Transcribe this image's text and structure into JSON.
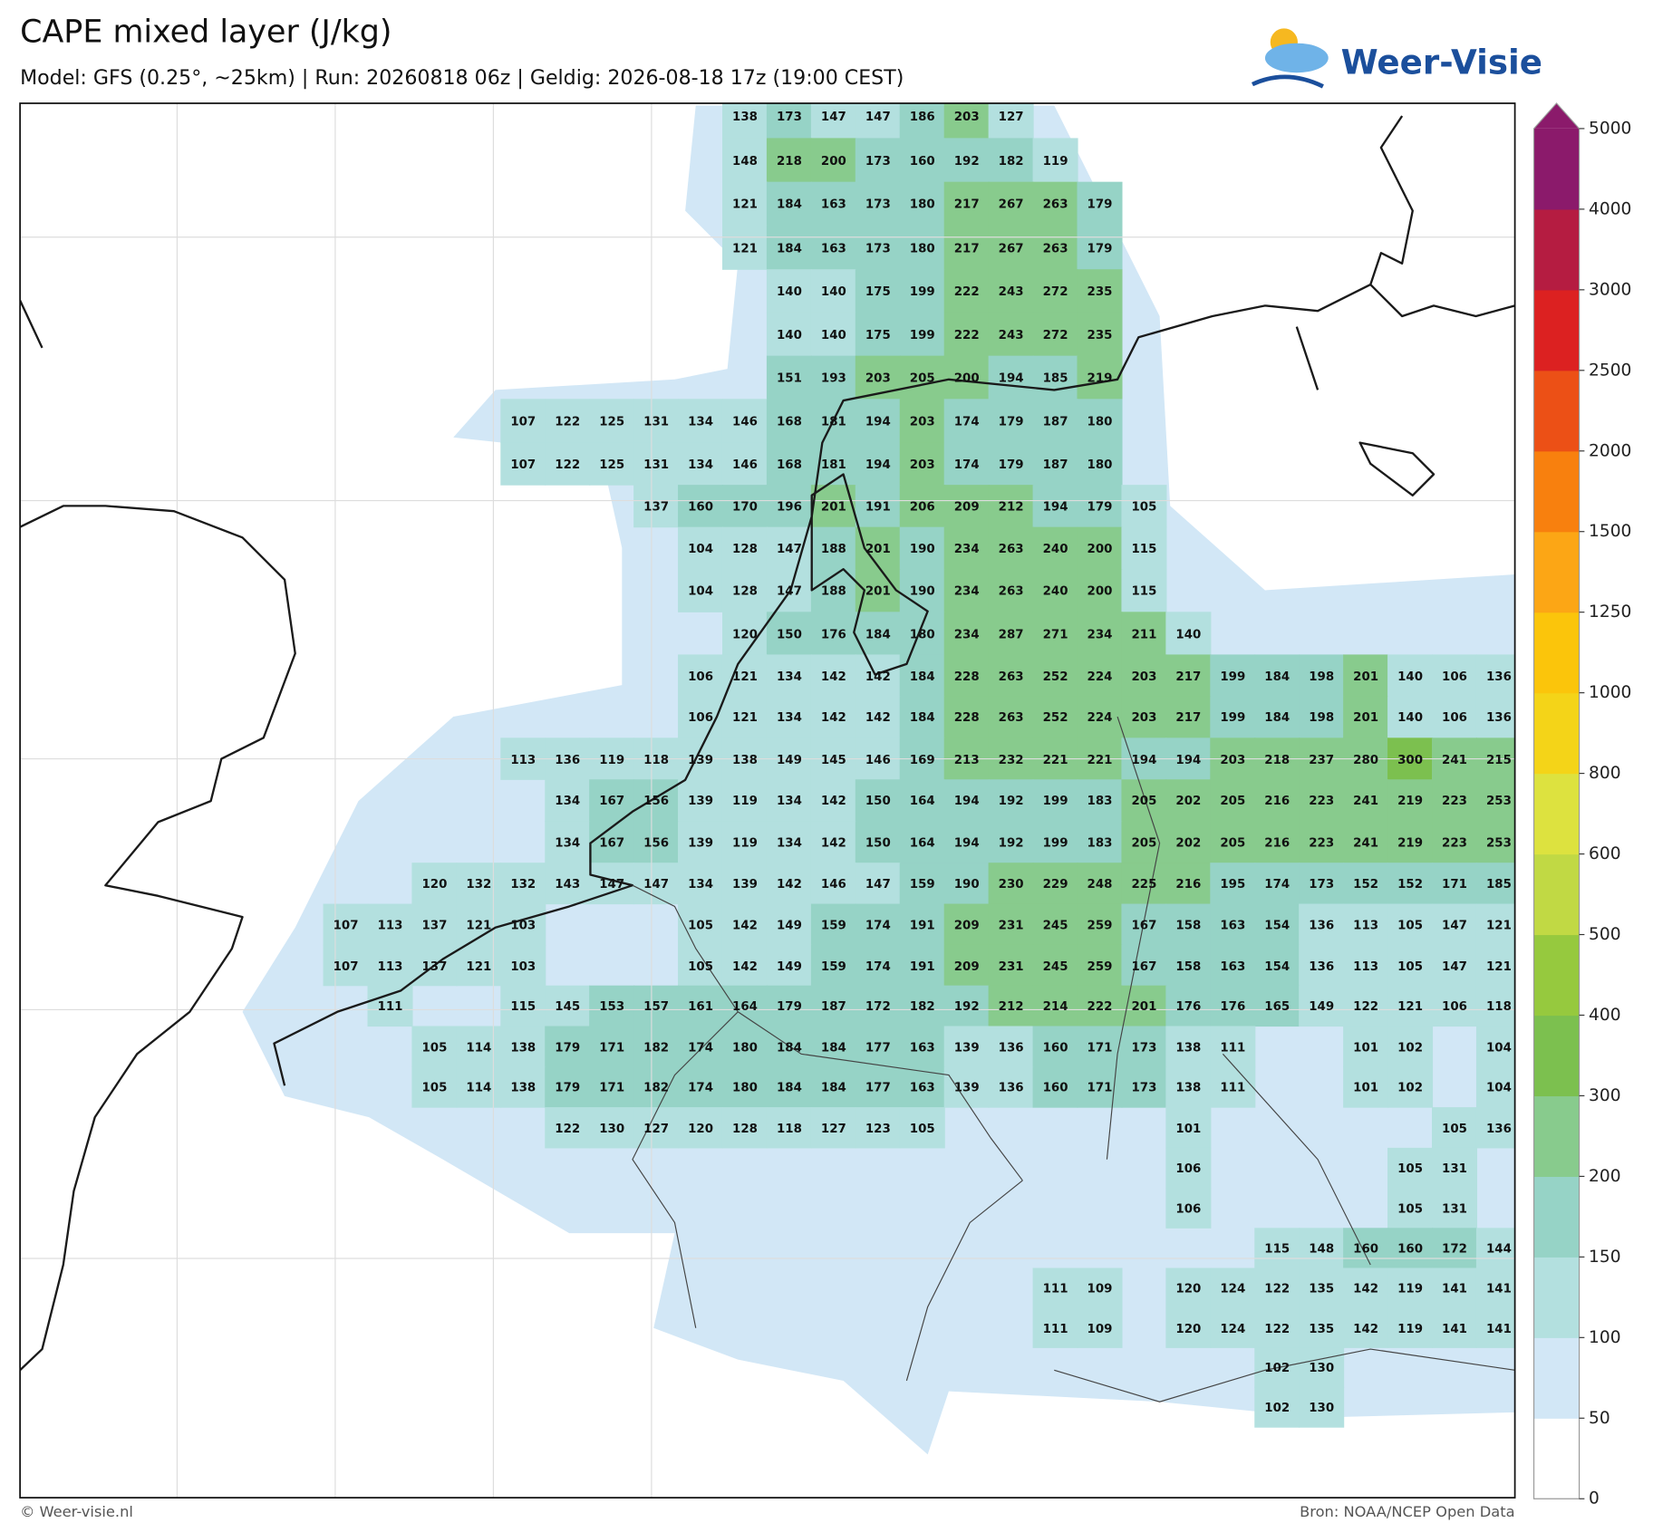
{
  "header": {
    "title": "CAPE mixed layer (J/kg)",
    "subtitle": "Model: GFS (0.25°, ~25km)  |  Run: 20260818 06z  |  Geldig: 2026-08-18 17z (19:00 CEST)"
  },
  "logo": "Weer-Visie",
  "grid_values": [
    [
      null,
      null,
      null,
      null,
      null,
      null,
      null,
      null,
      null,
      138,
      173,
      147,
      147,
      186,
      203,
      127,
      null,
      null,
      null,
      null,
      null,
      null,
      null,
      null,
      null,
      null,
      null
    ],
    [
      null,
      null,
      null,
      null,
      null,
      null,
      null,
      null,
      null,
      148,
      218,
      200,
      173,
      160,
      192,
      182,
      119,
      null,
      null,
      null,
      null,
      null,
      null,
      null,
      null,
      null,
      null
    ],
    [
      null,
      null,
      null,
      null,
      null,
      null,
      null,
      null,
      null,
      121,
      184,
      163,
      173,
      180,
      217,
      267,
      263,
      179,
      null,
      null,
      null,
      null,
      null,
      null,
      null,
      null,
      null
    ],
    [
      null,
      null,
      null,
      null,
      null,
      null,
      null,
      null,
      null,
      121,
      184,
      163,
      173,
      180,
      217,
      267,
      263,
      179,
      null,
      null,
      null,
      null,
      null,
      null,
      null,
      null,
      null
    ],
    [
      null,
      null,
      null,
      null,
      null,
      null,
      null,
      null,
      null,
      null,
      140,
      140,
      175,
      199,
      222,
      243,
      272,
      235,
      null,
      null,
      null,
      null,
      null,
      null,
      null,
      null,
      null
    ],
    [
      null,
      null,
      null,
      null,
      null,
      null,
      null,
      null,
      null,
      null,
      140,
      140,
      175,
      199,
      222,
      243,
      272,
      235,
      null,
      null,
      null,
      null,
      null,
      null,
      null,
      null,
      null
    ],
    [
      null,
      null,
      null,
      null,
      null,
      null,
      null,
      null,
      null,
      null,
      151,
      193,
      203,
      205,
      200,
      194,
      185,
      219,
      null,
      null,
      null,
      null,
      null,
      null,
      null,
      null,
      null
    ],
    [
      null,
      null,
      null,
      null,
      107,
      122,
      125,
      131,
      134,
      146,
      168,
      181,
      194,
      203,
      174,
      179,
      187,
      180,
      null,
      null,
      null,
      null,
      null,
      null,
      null,
      null,
      null
    ],
    [
      null,
      null,
      null,
      null,
      107,
      122,
      125,
      131,
      134,
      146,
      168,
      181,
      194,
      203,
      174,
      179,
      187,
      180,
      null,
      null,
      null,
      null,
      null,
      null,
      null,
      null,
      null
    ],
    [
      null,
      null,
      null,
      null,
      null,
      null,
      null,
      137,
      160,
      170,
      196,
      201,
      191,
      206,
      209,
      212,
      194,
      179,
      105,
      null,
      null,
      null,
      null,
      null,
      null,
      null,
      null
    ],
    [
      null,
      null,
      null,
      null,
      null,
      null,
      null,
      null,
      104,
      128,
      147,
      188,
      201,
      190,
      234,
      263,
      240,
      200,
      115,
      null,
      null,
      null,
      null,
      null,
      null,
      null,
      null
    ],
    [
      null,
      null,
      null,
      null,
      null,
      null,
      null,
      null,
      104,
      128,
      147,
      188,
      201,
      190,
      234,
      263,
      240,
      200,
      115,
      null,
      null,
      null,
      null,
      null,
      null,
      null,
      null
    ],
    [
      null,
      null,
      null,
      null,
      null,
      null,
      null,
      null,
      null,
      120,
      150,
      176,
      184,
      180,
      234,
      287,
      271,
      234,
      211,
      140,
      null,
      null,
      null,
      null,
      null,
      null,
      null
    ],
    [
      null,
      null,
      null,
      null,
      null,
      null,
      null,
      null,
      106,
      121,
      134,
      142,
      142,
      184,
      228,
      263,
      252,
      224,
      203,
      217,
      199,
      184,
      198,
      201,
      140,
      106,
      136
    ],
    [
      null,
      null,
      null,
      null,
      null,
      null,
      null,
      null,
      106,
      121,
      134,
      142,
      142,
      184,
      228,
      263,
      252,
      224,
      203,
      217,
      199,
      184,
      198,
      201,
      140,
      106,
      136
    ],
    [
      null,
      null,
      null,
      null,
      113,
      136,
      119,
      118,
      139,
      138,
      149,
      145,
      146,
      169,
      213,
      232,
      221,
      221,
      194,
      194,
      203,
      218,
      237,
      280,
      300,
      241,
      215
    ],
    [
      null,
      null,
      null,
      null,
      null,
      134,
      167,
      156,
      139,
      119,
      134,
      142,
      150,
      164,
      194,
      192,
      199,
      183,
      205,
      202,
      205,
      216,
      223,
      241,
      219,
      223,
      253
    ],
    [
      null,
      null,
      null,
      null,
      null,
      134,
      167,
      156,
      139,
      119,
      134,
      142,
      150,
      164,
      194,
      192,
      199,
      183,
      205,
      202,
      205,
      216,
      223,
      241,
      219,
      223,
      253
    ],
    [
      null,
      null,
      120,
      132,
      132,
      143,
      147,
      147,
      134,
      139,
      142,
      146,
      147,
      159,
      190,
      230,
      229,
      248,
      225,
      216,
      195,
      174,
      173,
      152,
      152,
      171,
      185
    ],
    [
      107,
      113,
      137,
      121,
      103,
      null,
      null,
      null,
      105,
      142,
      149,
      159,
      174,
      191,
      209,
      231,
      245,
      259,
      167,
      158,
      163,
      154,
      136,
      113,
      105,
      147,
      121
    ],
    [
      107,
      113,
      137,
      121,
      103,
      null,
      null,
      null,
      105,
      142,
      149,
      159,
      174,
      191,
      209,
      231,
      245,
      259,
      167,
      158,
      163,
      154,
      136,
      113,
      105,
      147,
      121
    ],
    [
      null,
      111,
      null,
      null,
      115,
      145,
      153,
      157,
      161,
      164,
      179,
      187,
      172,
      182,
      192,
      212,
      214,
      222,
      201,
      176,
      176,
      165,
      149,
      122,
      121,
      106,
      118
    ],
    [
      null,
      null,
      105,
      114,
      138,
      179,
      171,
      182,
      174,
      180,
      184,
      184,
      177,
      163,
      139,
      136,
      160,
      171,
      173,
      138,
      111,
      null,
      null,
      101,
      102,
      null,
      104
    ],
    [
      null,
      null,
      105,
      114,
      138,
      179,
      171,
      182,
      174,
      180,
      184,
      184,
      177,
      163,
      139,
      136,
      160,
      171,
      173,
      138,
      111,
      null,
      null,
      101,
      102,
      null,
      104
    ],
    [
      null,
      null,
      null,
      null,
      null,
      122,
      130,
      127,
      120,
      128,
      118,
      127,
      123,
      105,
      null,
      null,
      null,
      null,
      null,
      101,
      null,
      null,
      null,
      null,
      null,
      105,
      136
    ],
    [
      null,
      null,
      null,
      null,
      null,
      null,
      null,
      null,
      null,
      null,
      null,
      null,
      null,
      null,
      null,
      null,
      null,
      null,
      null,
      106,
      null,
      null,
      null,
      null,
      105,
      131,
      null
    ],
    [
      null,
      null,
      null,
      null,
      null,
      null,
      null,
      null,
      null,
      null,
      null,
      null,
      null,
      null,
      null,
      null,
      null,
      null,
      null,
      106,
      null,
      null,
      null,
      null,
      105,
      131,
      null
    ],
    [
      null,
      null,
      null,
      null,
      null,
      null,
      null,
      null,
      null,
      null,
      null,
      null,
      null,
      null,
      null,
      null,
      null,
      null,
      null,
      null,
      null,
      115,
      148,
      160,
      160,
      172,
      144
    ],
    [
      null,
      null,
      null,
      null,
      null,
      null,
      null,
      null,
      null,
      null,
      null,
      null,
      null,
      null,
      null,
      null,
      111,
      109,
      null,
      120,
      124,
      122,
      135,
      142,
      119,
      141,
      141
    ],
    [
      null,
      null,
      null,
      null,
      null,
      null,
      null,
      null,
      null,
      null,
      null,
      null,
      null,
      null,
      null,
      null,
      111,
      109,
      null,
      120,
      124,
      122,
      135,
      142,
      119,
      141,
      141
    ],
    [
      null,
      null,
      null,
      null,
      null,
      null,
      null,
      null,
      null,
      null,
      null,
      null,
      null,
      null,
      null,
      null,
      null,
      null,
      null,
      null,
      null,
      102,
      130,
      null,
      null,
      null,
      null
    ],
    [
      null,
      null,
      null,
      null,
      null,
      null,
      null,
      null,
      null,
      null,
      null,
      null,
      null,
      null,
      null,
      null,
      null,
      null,
      null,
      null,
      null,
      102,
      130,
      null,
      null,
      null,
      null
    ]
  ],
  "colorbar": {
    "ticks": [
      0,
      50,
      100,
      150,
      200,
      300,
      400,
      500,
      600,
      800,
      1000,
      1250,
      1500,
      2000,
      2500,
      3000,
      4000,
      5000
    ],
    "colors": [
      "#ffffff",
      "#d2e7f6",
      "#b3e0df",
      "#96d3c6",
      "#88cb8d",
      "#7cc04f",
      "#96c93e",
      "#c1d944",
      "#dde23f",
      "#f4d418",
      "#fbc50b",
      "#fca615",
      "#f8800e",
      "#ec5016",
      "#dc2121",
      "#b51c41",
      "#8b1a6b"
    ]
  },
  "footer": {
    "left": "© Weer-visie.nl",
    "right": "Bron: NOAA/NCEP Open Data"
  }
}
